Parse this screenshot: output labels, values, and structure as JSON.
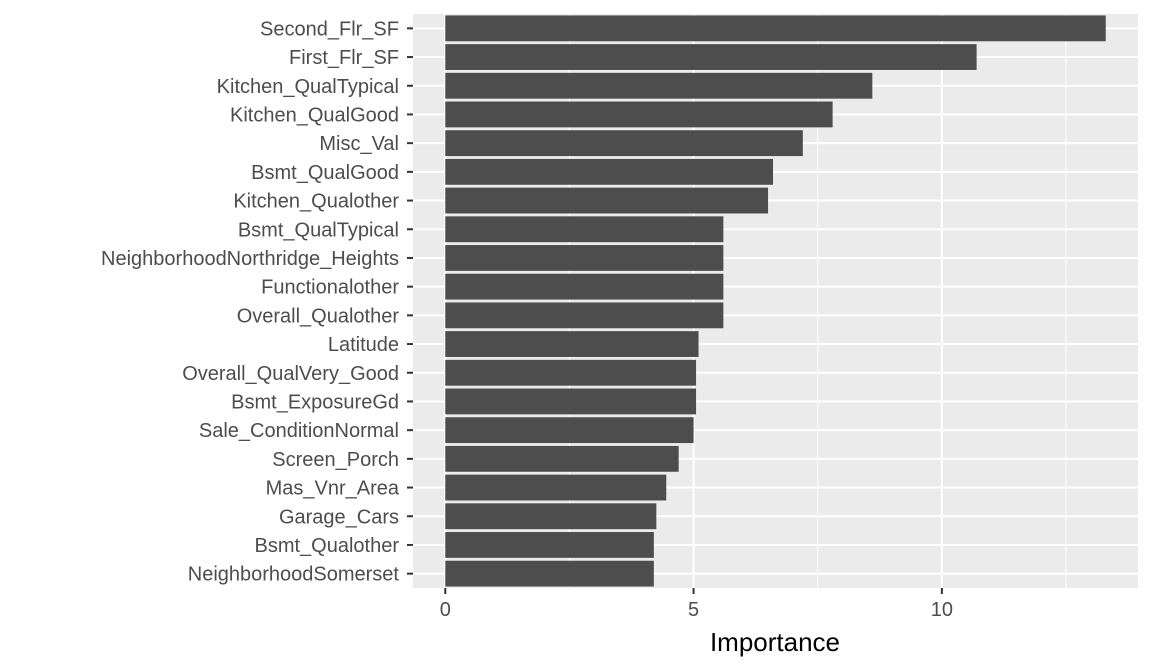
{
  "chart_data": {
    "type": "bar",
    "orientation": "horizontal",
    "xlabel": "Importance",
    "ylabel": "",
    "xlim": [
      -0.65,
      13.95
    ],
    "x_ticks": [
      0,
      5,
      10
    ],
    "grid": true,
    "colors": {
      "bar": "#4d4d4d",
      "panel": "#ebebeb",
      "grid": "#ffffff"
    },
    "categories": [
      "Second_Flr_SF",
      "First_Flr_SF",
      "Kitchen_QualTypical",
      "Kitchen_QualGood",
      "Misc_Val",
      "Bsmt_QualGood",
      "Kitchen_Qualother",
      "Bsmt_QualTypical",
      "NeighborhoodNorthridge_Heights",
      "Functionalother",
      "Overall_Qualother",
      "Latitude",
      "Overall_QualVery_Good",
      "Bsmt_ExposureGd",
      "Sale_ConditionNormal",
      "Screen_Porch",
      "Mas_Vnr_Area",
      "Garage_Cars",
      "Bsmt_Qualother",
      "NeighborhoodSomerset"
    ],
    "values": [
      13.3,
      10.7,
      8.6,
      7.8,
      7.2,
      6.6,
      6.5,
      5.6,
      5.6,
      5.6,
      5.6,
      5.1,
      5.05,
      5.05,
      5.0,
      4.7,
      4.45,
      4.25,
      4.2,
      4.2
    ]
  }
}
